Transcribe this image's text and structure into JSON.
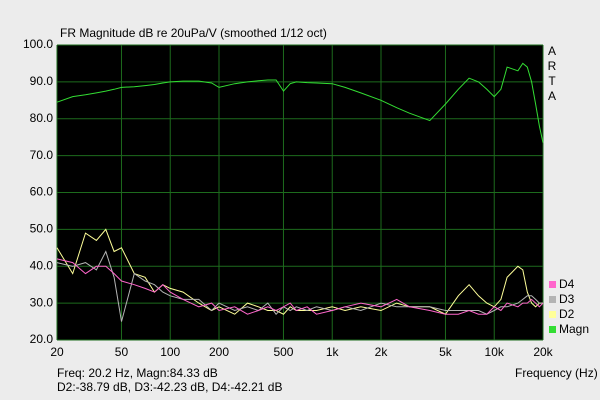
{
  "chart_data": {
    "type": "line",
    "title": "FR Magnitude dB re 20uPa/V (smoothed 1/12 oct)",
    "side_label": [
      "A",
      "R",
      "T",
      "A"
    ],
    "x_label": "Frequency (Hz)",
    "info_lines": [
      "Freq: 20.2 Hz, Magn:84.33 dB",
      "D2:-38.79 dB, D3:-42.23 dB, D4:-42.21 dB"
    ],
    "x_log": true,
    "grid": true,
    "legend": "right",
    "xlim": [
      20,
      20000
    ],
    "ylim": [
      20,
      100
    ],
    "xticks": [
      20,
      50,
      100,
      200,
      500,
      {
        "value": 1000,
        "label": "1k"
      },
      {
        "value": 2000,
        "label": "2k"
      },
      {
        "value": 5000,
        "label": "5k"
      },
      {
        "value": 10000,
        "label": "10k"
      },
      {
        "value": 20000,
        "label": "20k"
      }
    ],
    "yticks": [
      {
        "value": 20,
        "label": "20.0"
      },
      {
        "value": 30,
        "label": "30.0"
      },
      {
        "value": 40,
        "label": "40.0"
      },
      {
        "value": 50,
        "label": "50.0"
      },
      {
        "value": 60,
        "label": "60.0"
      },
      {
        "value": 70,
        "label": "70.0"
      },
      {
        "value": 80,
        "label": "80.0"
      },
      {
        "value": 90,
        "label": "90.0"
      },
      {
        "value": 100,
        "label": "100.0"
      }
    ],
    "x": [
      20,
      25,
      30,
      35,
      40,
      45,
      50,
      60,
      70,
      80,
      90,
      100,
      120,
      150,
      180,
      200,
      250,
      300,
      350,
      400,
      450,
      500,
      550,
      600,
      700,
      800,
      1000,
      1200,
      1500,
      2000,
      2500,
      3000,
      4000,
      5000,
      6000,
      7000,
      8000,
      9000,
      10000,
      11000,
      12000,
      14000,
      15000,
      16000,
      17000,
      18000,
      19000,
      20000
    ],
    "series": [
      {
        "name": "D4",
        "color": "#ff66cc",
        "values": [
          42,
          41,
          38,
          40,
          40,
          38,
          36,
          35,
          34,
          33,
          35,
          33,
          31,
          29,
          30,
          28,
          29,
          27,
          28,
          29,
          28,
          29,
          30,
          28,
          29,
          27,
          28,
          29,
          30,
          29,
          31,
          29,
          28,
          27,
          27,
          28,
          27,
          27,
          29,
          28,
          30,
          29,
          30,
          30,
          31,
          30,
          29,
          30
        ]
      },
      {
        "name": "D3",
        "color": "#b4b4b4",
        "values": [
          41,
          40,
          41,
          39,
          44,
          37,
          25,
          38,
          36,
          35,
          33,
          32,
          31,
          31,
          28,
          30,
          28,
          29,
          28,
          30,
          27,
          29,
          28,
          29,
          28,
          29,
          28,
          29,
          28,
          30,
          29,
          29,
          29,
          28,
          28,
          28,
          28,
          27,
          28,
          29,
          29,
          30,
          31,
          32,
          32,
          31,
          30,
          30
        ]
      },
      {
        "name": "D2",
        "color": "#ffff99",
        "values": [
          45,
          38,
          49,
          47,
          50,
          44,
          45,
          38,
          37,
          33,
          35,
          34,
          33,
          30,
          28,
          29,
          27,
          30,
          29,
          28,
          28,
          27,
          29,
          28,
          28,
          28,
          29,
          28,
          29,
          28,
          30,
          29,
          29,
          27,
          32,
          35,
          32,
          30,
          29,
          31,
          37,
          40,
          39,
          33,
          30,
          29,
          30,
          30
        ]
      },
      {
        "name": "Magn",
        "color": "#33dd33",
        "values": [
          84.5,
          86,
          86.5,
          87,
          87.5,
          88,
          88.5,
          88.7,
          89,
          89.3,
          89.7,
          90,
          90.2,
          90.2,
          89.7,
          88.5,
          89.5,
          90,
          90.3,
          90.5,
          90.5,
          87.5,
          89.5,
          90,
          89.8,
          89.7,
          89.5,
          88.5,
          87,
          85,
          83,
          81.5,
          79.5,
          84,
          88,
          91,
          90,
          88,
          86,
          88,
          94,
          93,
          95,
          94,
          90,
          84,
          78,
          73.5
        ]
      }
    ]
  }
}
